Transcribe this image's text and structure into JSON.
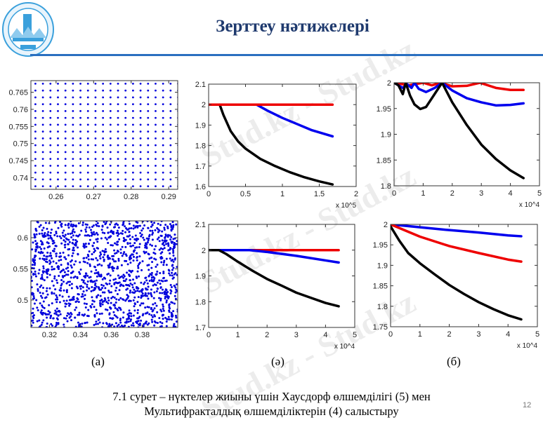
{
  "slide": {
    "title": "Зерттеу нәтижелері",
    "panel_labels": [
      "(a)",
      "(ә)",
      "(б)"
    ],
    "caption_line1": "7.1 сурет – нүктелер жиыны үшін Хаусдорф өлшемділігі (5) мен",
    "caption_line2": "Мультифракталдық өлшемділіктерін (4) салыстыру",
    "page_number": "12",
    "watermark": "Stud.kz - Stud.kz",
    "colors": {
      "title": "#1f3a6e",
      "rule": "#2a6fc0",
      "points": "#0000dd",
      "red": "#ee0000",
      "blue": "#0000ee",
      "black": "#000000"
    }
  },
  "chart_data": [
    {
      "id": "a-top",
      "type": "scatter",
      "marker": "dot",
      "xlim": [
        0.2533,
        0.2924
      ],
      "ylim": [
        0.7366,
        0.7684
      ],
      "xticks": [
        "0.26",
        "0.27",
        "0.28",
        "0.29"
      ],
      "xtick_values": [
        0.26,
        0.27,
        0.28,
        0.29
      ],
      "yticks": [
        "0.74",
        "0.745",
        "0.75",
        "0.755",
        "0.76",
        "0.765"
      ],
      "ytick_values": [
        0.74,
        0.745,
        0.75,
        0.755,
        0.76,
        0.765
      ],
      "grid_points": {
        "x_start": 0.2545,
        "x_step": 0.002,
        "x_count": 20,
        "y_start": 0.7375,
        "y_step": 0.002,
        "y_count": 16
      }
    },
    {
      "id": "a-bottom",
      "type": "scatter",
      "marker": "dot",
      "distribution": "random",
      "xlim": [
        0.308,
        0.403
      ],
      "ylim": [
        0.456,
        0.627
      ],
      "xticks": [
        "0.32",
        "0.34",
        "0.36",
        "0.38"
      ],
      "xtick_values": [
        0.32,
        0.34,
        0.36,
        0.38
      ],
      "yticks": [
        "0.5",
        "0.55",
        "0.6"
      ],
      "ytick_values": [
        0.5,
        0.55,
        0.6
      ]
    },
    {
      "id": "ae-top",
      "type": "line",
      "xlim": [
        0,
        2
      ],
      "ylim": [
        1.6,
        2.1
      ],
      "x_multiplier": "x 10^5",
      "xticks": [
        "0",
        "0.5",
        "1",
        "1.5",
        "2"
      ],
      "xtick_values": [
        0,
        0.5,
        1,
        1.5,
        2
      ],
      "yticks": [
        "1.6",
        "1.7",
        "1.8",
        "1.9",
        "2",
        "2.1"
      ],
      "ytick_values": [
        1.6,
        1.7,
        1.8,
        1.9,
        2,
        2.1
      ],
      "series": [
        {
          "color": "#0000ee",
          "points": [
            [
              0,
              2
            ],
            [
              0.65,
              2
            ],
            [
              0.8,
              1.97
            ],
            [
              1,
              1.935
            ],
            [
              1.2,
              1.905
            ],
            [
              1.4,
              1.875
            ],
            [
              1.68,
              1.845
            ]
          ]
        },
        {
          "color": "#000000",
          "points": [
            [
              0.15,
              2
            ],
            [
              0.2,
              1.95
            ],
            [
              0.3,
              1.87
            ],
            [
              0.4,
              1.82
            ],
            [
              0.5,
              1.785
            ],
            [
              0.7,
              1.735
            ],
            [
              0.9,
              1.7
            ],
            [
              1.1,
              1.67
            ],
            [
              1.3,
              1.645
            ],
            [
              1.5,
              1.625
            ],
            [
              1.68,
              1.61
            ]
          ]
        },
        {
          "color": "#ee0000",
          "points": [
            [
              0,
              2
            ],
            [
              1.68,
              2
            ]
          ]
        }
      ]
    },
    {
      "id": "b-top",
      "type": "line",
      "xlim": [
        0,
        5
      ],
      "ylim": [
        1.8,
        2.0
      ],
      "x_multiplier": "x 10^4",
      "xticks": [
        "0",
        "1",
        "2",
        "3",
        "4",
        "5"
      ],
      "xtick_values": [
        0,
        1,
        2,
        3,
        4,
        5
      ],
      "yticks": [
        "1.8",
        "1.85",
        "1.9",
        "1.95",
        "2"
      ],
      "ytick_values": [
        1.8,
        1.85,
        1.9,
        1.95,
        2
      ],
      "series": [
        {
          "color": "#ee0000",
          "points": [
            [
              0,
              2
            ],
            [
              0.5,
              1.995
            ],
            [
              1,
              2
            ],
            [
              1.3,
              1.995
            ],
            [
              1.6,
              2
            ],
            [
              2,
              1.993
            ],
            [
              2.5,
              1.994
            ],
            [
              2.95,
              2
            ],
            [
              3.5,
              1.99
            ],
            [
              4,
              1.986
            ],
            [
              4.45,
              1.986
            ]
          ]
        },
        {
          "color": "#0000ee",
          "points": [
            [
              0,
              2
            ],
            [
              0.3,
              1.99
            ],
            [
              0.45,
              1.997
            ],
            [
              0.6,
              1.99
            ],
            [
              0.7,
              2
            ],
            [
              0.85,
              1.988
            ],
            [
              1.1,
              1.982
            ],
            [
              1.4,
              1.99
            ],
            [
              1.65,
              2
            ],
            [
              2,
              1.985
            ],
            [
              2.5,
              1.97
            ],
            [
              3,
              1.962
            ],
            [
              3.5,
              1.956
            ],
            [
              4,
              1.957
            ],
            [
              4.45,
              1.96
            ]
          ]
        },
        {
          "color": "#000000",
          "points": [
            [
              0,
              2
            ],
            [
              0.15,
              1.995
            ],
            [
              0.3,
              1.978
            ],
            [
              0.4,
              2
            ],
            [
              0.55,
              1.975
            ],
            [
              0.7,
              1.958
            ],
            [
              0.9,
              1.949
            ],
            [
              1.1,
              1.953
            ],
            [
              1.3,
              1.97
            ],
            [
              1.65,
              2
            ],
            [
              2,
              1.962
            ],
            [
              2.5,
              1.918
            ],
            [
              3,
              1.88
            ],
            [
              3.5,
              1.852
            ],
            [
              4,
              1.83
            ],
            [
              4.45,
              1.815
            ]
          ]
        }
      ]
    },
    {
      "id": "ae-bottom",
      "type": "line",
      "xlim": [
        0,
        5
      ],
      "ylim": [
        1.7,
        2.1
      ],
      "x_multiplier": "x 10^4",
      "xticks": [
        "0",
        "1",
        "2",
        "3",
        "4",
        "5"
      ],
      "xtick_values": [
        0,
        1,
        2,
        3,
        4,
        5
      ],
      "yticks": [
        "1.7",
        "1.8",
        "1.9",
        "2",
        "2.1"
      ],
      "ytick_values": [
        1.7,
        1.8,
        1.9,
        2,
        2.1
      ],
      "series": [
        {
          "color": "#ee0000",
          "points": [
            [
              0,
              2
            ],
            [
              4.45,
              2
            ]
          ]
        },
        {
          "color": "#0000ee",
          "points": [
            [
              0,
              2
            ],
            [
              1.4,
              2
            ],
            [
              2,
              1.993
            ],
            [
              3,
              1.978
            ],
            [
              4,
              1.96
            ],
            [
              4.45,
              1.952
            ]
          ]
        },
        {
          "color": "#000000",
          "points": [
            [
              0,
              2
            ],
            [
              0.35,
              2
            ],
            [
              0.6,
              1.985
            ],
            [
              1,
              1.955
            ],
            [
              1.5,
              1.92
            ],
            [
              2,
              1.888
            ],
            [
              2.5,
              1.862
            ],
            [
              3,
              1.835
            ],
            [
              3.5,
              1.815
            ],
            [
              4,
              1.795
            ],
            [
              4.45,
              1.782
            ]
          ]
        }
      ]
    },
    {
      "id": "b-bottom",
      "type": "line",
      "xlim": [
        0,
        5
      ],
      "ylim": [
        1.75,
        2.0
      ],
      "x_multiplier": "x 10^4",
      "xticks": [
        "0",
        "1",
        "2",
        "3",
        "4",
        "5"
      ],
      "xtick_values": [
        0,
        1,
        2,
        3,
        4,
        5
      ],
      "yticks": [
        "1.75",
        "1.8",
        "1.85",
        "1.9",
        "1.95",
        "2"
      ],
      "ytick_values": [
        1.75,
        1.8,
        1.85,
        1.9,
        1.95,
        2
      ],
      "series": [
        {
          "color": "#0000ee",
          "points": [
            [
              0,
              2
            ],
            [
              1,
              1.993
            ],
            [
              2,
              1.986
            ],
            [
              3,
              1.98
            ],
            [
              4,
              1.973
            ],
            [
              4.45,
              1.971
            ]
          ]
        },
        {
          "color": "#ee0000",
          "points": [
            [
              0,
              2
            ],
            [
              0.5,
              1.985
            ],
            [
              1,
              1.97
            ],
            [
              2,
              1.947
            ],
            [
              3,
              1.93
            ],
            [
              4,
              1.914
            ],
            [
              4.45,
              1.909
            ]
          ]
        },
        {
          "color": "#000000",
          "points": [
            [
              0,
              1.995
            ],
            [
              0.3,
              1.96
            ],
            [
              0.6,
              1.93
            ],
            [
              1,
              1.905
            ],
            [
              1.5,
              1.878
            ],
            [
              2,
              1.852
            ],
            [
              2.5,
              1.83
            ],
            [
              3,
              1.81
            ],
            [
              3.5,
              1.793
            ],
            [
              4,
              1.778
            ],
            [
              4.45,
              1.768
            ]
          ]
        }
      ]
    }
  ]
}
